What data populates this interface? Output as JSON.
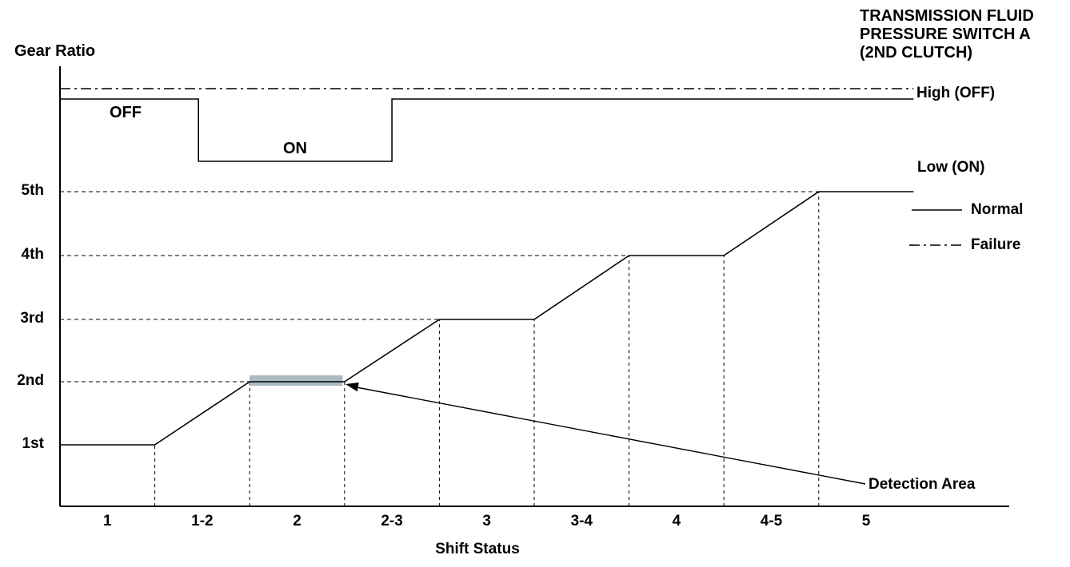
{
  "header": {
    "title_lines": [
      "TRANSMISSION FLUID",
      "PRESSURE SWITCH A",
      "(2ND CLUTCH)"
    ]
  },
  "colors": {
    "line": "#000000",
    "background": "#ffffff",
    "detection_area_fill": "#a9bcc3"
  },
  "chart_data": {
    "type": "line",
    "title": "TRANSMISSION FLUID PRESSURE SWITCH A (2ND CLUTCH)",
    "xlabel": "Shift Status",
    "ylabel": "Gear Ratio",
    "x_categories": [
      "1",
      "1-2",
      "2",
      "2-3",
      "3",
      "3-4",
      "4",
      "4-5",
      "5"
    ],
    "y_categories": [
      "1st",
      "2nd",
      "3rd",
      "4th",
      "5th"
    ],
    "x_axis_note": "one unit per shift-status category; dashed vertical boundaries at units 1-8",
    "grid": "dashed horizontal line per gear up to trace; dashed vertical line at each shift boundary",
    "series": [
      {
        "name": "gear-ratio-trace",
        "style": "solid",
        "points_units_gear": [
          [
            0,
            1
          ],
          [
            1,
            1
          ],
          [
            2,
            2
          ],
          [
            3,
            2
          ],
          [
            4,
            3
          ],
          [
            5,
            3
          ],
          [
            6,
            4
          ],
          [
            7,
            4
          ],
          [
            8,
            5
          ],
          [
            9,
            5
          ]
        ]
      },
      {
        "name": "pressure-switch-signal",
        "style": "solid",
        "states": [
          {
            "from": 0,
            "to": 1.46,
            "state": "OFF"
          },
          {
            "from": 1.46,
            "to": 3.5,
            "state": "ON"
          },
          {
            "from": 3.5,
            "to": 9,
            "state": "OFF"
          }
        ]
      },
      {
        "name": "failure-signal",
        "style": "dash-dot",
        "state": "High (OFF)",
        "from": 0,
        "to": 9
      }
    ],
    "switch_labels": {
      "off": "OFF",
      "on": "ON",
      "high": "High (OFF)",
      "low": "Low (ON)"
    },
    "legend": [
      {
        "label": "Normal",
        "style": "solid"
      },
      {
        "label": "Failure",
        "style": "dash-dot"
      }
    ],
    "detection_area": {
      "label": "Detection Area",
      "gear": 2,
      "from": 2,
      "to": 2.98
    }
  }
}
